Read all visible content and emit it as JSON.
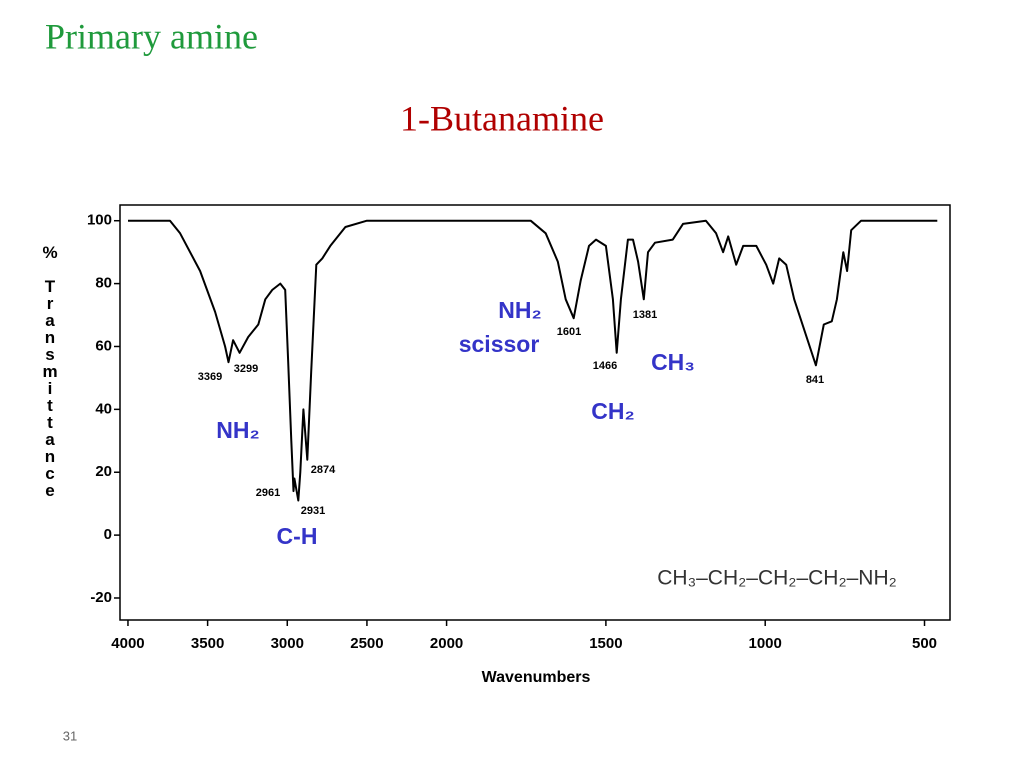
{
  "heading": "Primary amine",
  "page_number": "31",
  "chart_data": {
    "type": "line",
    "title": "1-Butanamine",
    "xlabel": "Wavenumbers",
    "ylabel": "% Transmittance",
    "x": [
      4000,
      3736,
      3673,
      3547,
      3453,
      3390,
      3369,
      3340,
      3299,
      3245,
      3182,
      3138,
      3094,
      3044,
      3013,
      2994,
      2975,
      2961,
      2955,
      2931,
      2918,
      2899,
      2874,
      2850,
      2818,
      2780,
      2730,
      2635,
      2500,
      2000,
      1736,
      1689,
      1651,
      1626,
      1601,
      1579,
      1553,
      1531,
      1500,
      1478,
      1466,
      1453,
      1431,
      1415,
      1399,
      1381,
      1368,
      1346,
      1290,
      1258,
      1186,
      1154,
      1132,
      1116,
      1091,
      1069,
      1028,
      997,
      975,
      956,
      934,
      909,
      841,
      816,
      791,
      775,
      755,
      743,
      730,
      699,
      460
    ],
    "series": [
      {
        "name": "1-Butanamine",
        "color": "#000000",
        "values": [
          100,
          100,
          96,
          84,
          71,
          60,
          55,
          62,
          58,
          63,
          67,
          75,
          78,
          80,
          78,
          55,
          30,
          14,
          18,
          11,
          20,
          40,
          24,
          52,
          86,
          88,
          92,
          98,
          100,
          100,
          100,
          96,
          87,
          75,
          69,
          81,
          92,
          94,
          92,
          75,
          58,
          75,
          94,
          94,
          87,
          75,
          90,
          93,
          94,
          99,
          100,
          96,
          90,
          95,
          86,
          92,
          92,
          86,
          80,
          88,
          86,
          75,
          54,
          67,
          68,
          75,
          90,
          84,
          97,
          100,
          100
        ]
      }
    ],
    "xlim": [
      4050,
      420
    ],
    "x_scale_break": 2000,
    "ylim": [
      -27,
      105
    ],
    "xticks": [
      4000,
      3500,
      3000,
      2500,
      2000,
      1500,
      1000,
      500
    ],
    "yticks": [
      100,
      80,
      60,
      40,
      20,
      0,
      -20
    ],
    "annotations": [
      "3369",
      "3299",
      "2961",
      "2931",
      "2874",
      "1601",
      "1466",
      "1381",
      "841",
      "NH₂",
      "scissor",
      "NH₂",
      "C-H",
      "CH₂",
      "CH₃"
    ],
    "formula": "CH₃–CH₂–CH₂–CH₂–NH₂"
  }
}
